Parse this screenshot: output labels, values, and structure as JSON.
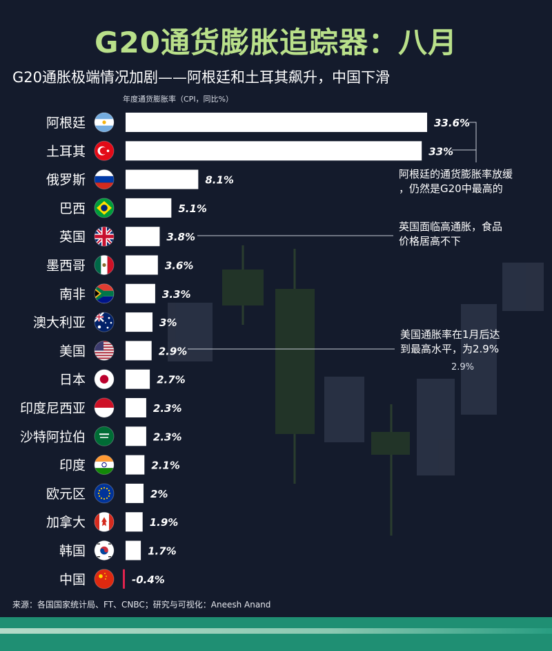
{
  "header": {
    "title": "G20通货膨胀追踪器：八月",
    "subtitle": "G20通胀极端情况加剧——阿根廷和土耳其飙升，中国下滑"
  },
  "chart_data": {
    "type": "bar",
    "orientation": "horizontal",
    "xlabel": "年度通货膨胀率（CPI，同比%）",
    "categories": [
      "阿根廷",
      "土耳其",
      "俄罗斯",
      "巴西",
      "英国",
      "墨西哥",
      "南非",
      "澳大利亚",
      "美国",
      "日本",
      "印度尼西亚",
      "沙特阿拉伯",
      "印度",
      "欧元区",
      "加拿大",
      "韩国",
      "中国"
    ],
    "values": [
      33.6,
      33,
      8.1,
      5.1,
      3.8,
      3.6,
      3.3,
      3,
      2.9,
      2.7,
      2.3,
      2.3,
      2.1,
      2,
      1.9,
      1.7,
      -0.4
    ],
    "value_labels": [
      "33.6%",
      "33%",
      "8.1%",
      "5.1%",
      "3.8%",
      "3.6%",
      "3.3%",
      "3%",
      "2.9%",
      "2.7%",
      "2.3%",
      "2.3%",
      "2.1%",
      "2%",
      "1.9%",
      "1.7%",
      "-0.4%"
    ],
    "flags": [
      "flag-argentina-icon",
      "flag-turkey-icon",
      "flag-russia-icon",
      "flag-brazil-icon",
      "flag-uk-icon",
      "flag-mexico-icon",
      "flag-south-africa-icon",
      "flag-australia-icon",
      "flag-usa-icon",
      "flag-japan-icon",
      "flag-indonesia-icon",
      "flag-saudi-arabia-icon",
      "flag-india-icon",
      "flag-eu-icon",
      "flag-canada-icon",
      "flag-south-korea-icon",
      "flag-china-icon"
    ],
    "xlim": [
      0,
      33.6
    ],
    "grid": false,
    "colors": {
      "bar": "#ffffff",
      "negative_bar": "#e0234e",
      "title": "#b9e08a"
    },
    "annotations": [
      {
        "text": "阿根廷的通货膨胀率放缓，仍然是G20中最高的",
        "target": "阿根廷"
      },
      {
        "text": "英国面临高通胀，食品价格居高不下",
        "target": "英国"
      },
      {
        "text": "美国通胀率在1月后达到最高水平，为2.9%",
        "target": "美国",
        "sub": "2.9%"
      }
    ]
  },
  "annotations_text": {
    "argentina_line1": "阿根廷的通货膨胀率放缓",
    "argentina_line2": "，仍然是G20中最高的",
    "uk_line1": "英国面临高通胀，食品",
    "uk_line2": "价格居高不下",
    "usa_line1": "美国通胀率在1月后达",
    "usa_line2": "到最高水平，为2.9%",
    "usa_sub": "2.9%"
  },
  "footer": {
    "source": "来源：各国国家统计局、FT、CNBC；研究与可视化：Aneesh Anand"
  }
}
